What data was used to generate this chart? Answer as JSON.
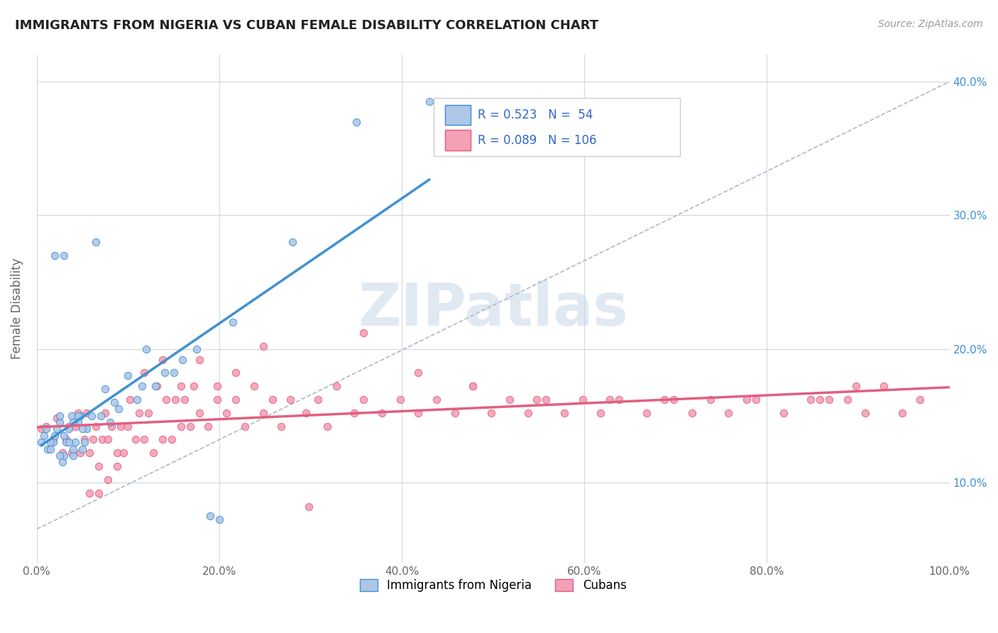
{
  "title": "IMMIGRANTS FROM NIGERIA VS CUBAN FEMALE DISABILITY CORRELATION CHART",
  "source": "Source: ZipAtlas.com",
  "xlabel": "",
  "ylabel": "Female Disability",
  "legend_label1": "Immigrants from Nigeria",
  "legend_label2": "Cubans",
  "r1": 0.523,
  "n1": 54,
  "r2": 0.089,
  "n2": 106,
  "color1": "#aec6e8",
  "color2": "#f4a0b5",
  "line_color1": "#4090d0",
  "line_color2": "#e06080",
  "watermark": "ZIPatlas",
  "watermark_color": "#c8d8e8",
  "background_color": "#ffffff",
  "grid_color": "#d0d8e0",
  "xlim": [
    0.0,
    1.0
  ],
  "ylim": [
    0.04,
    0.42
  ],
  "xticks": [
    0.0,
    0.2,
    0.4,
    0.6,
    0.8,
    1.0
  ],
  "xtick_labels": [
    "0.0%",
    "20.0%",
    "40.0%",
    "60.0%",
    "80.0%",
    "100.0%"
  ],
  "yticks": [
    0.1,
    0.2,
    0.3,
    0.4
  ],
  "ytick_labels": [
    "10.0%",
    "20.0%",
    "30.0%",
    "40.0%"
  ],
  "nigeria_x": [
    0.005,
    0.008,
    0.01,
    0.012,
    0.015,
    0.018,
    0.02,
    0.022,
    0.025,
    0.025,
    0.028,
    0.03,
    0.03,
    0.032,
    0.035,
    0.038,
    0.04,
    0.04,
    0.042,
    0.045,
    0.048,
    0.05,
    0.052,
    0.055,
    0.02,
    0.025,
    0.015,
    0.03,
    0.035,
    0.04,
    0.045,
    0.05,
    0.06,
    0.065,
    0.07,
    0.075,
    0.08,
    0.085,
    0.09,
    0.1,
    0.11,
    0.115,
    0.12,
    0.13,
    0.14,
    0.15,
    0.16,
    0.175,
    0.19,
    0.2,
    0.215,
    0.28,
    0.35,
    0.43
  ],
  "nigeria_y": [
    0.13,
    0.135,
    0.14,
    0.125,
    0.125,
    0.13,
    0.135,
    0.14,
    0.145,
    0.15,
    0.115,
    0.12,
    0.135,
    0.13,
    0.14,
    0.15,
    0.12,
    0.125,
    0.13,
    0.145,
    0.15,
    0.125,
    0.13,
    0.14,
    0.27,
    0.12,
    0.13,
    0.27,
    0.13,
    0.145,
    0.15,
    0.14,
    0.15,
    0.28,
    0.15,
    0.17,
    0.145,
    0.16,
    0.155,
    0.18,
    0.162,
    0.172,
    0.2,
    0.172,
    0.182,
    0.182,
    0.192,
    0.2,
    0.075,
    0.072,
    0.22,
    0.28,
    0.37,
    0.385
  ],
  "cuba_x": [
    0.005,
    0.01,
    0.018,
    0.022,
    0.028,
    0.032,
    0.035,
    0.038,
    0.042,
    0.045,
    0.048,
    0.052,
    0.055,
    0.058,
    0.062,
    0.065,
    0.068,
    0.072,
    0.075,
    0.078,
    0.082,
    0.088,
    0.092,
    0.095,
    0.1,
    0.102,
    0.108,
    0.112,
    0.118,
    0.122,
    0.128,
    0.132,
    0.138,
    0.142,
    0.148,
    0.152,
    0.158,
    0.162,
    0.168,
    0.172,
    0.178,
    0.188,
    0.198,
    0.208,
    0.218,
    0.228,
    0.238,
    0.248,
    0.258,
    0.268,
    0.278,
    0.295,
    0.308,
    0.318,
    0.328,
    0.348,
    0.358,
    0.378,
    0.398,
    0.418,
    0.438,
    0.458,
    0.478,
    0.498,
    0.518,
    0.538,
    0.558,
    0.578,
    0.598,
    0.618,
    0.638,
    0.668,
    0.688,
    0.718,
    0.738,
    0.758,
    0.788,
    0.818,
    0.848,
    0.868,
    0.888,
    0.908,
    0.928,
    0.948,
    0.968,
    0.118,
    0.138,
    0.078,
    0.068,
    0.088,
    0.058,
    0.198,
    0.178,
    0.158,
    0.218,
    0.358,
    0.418,
    0.478,
    0.548,
    0.628,
    0.698,
    0.778,
    0.858,
    0.898,
    0.248,
    0.298
  ],
  "cuba_y": [
    0.14,
    0.142,
    0.132,
    0.148,
    0.122,
    0.132,
    0.142,
    0.122,
    0.142,
    0.152,
    0.122,
    0.132,
    0.152,
    0.122,
    0.132,
    0.142,
    0.112,
    0.132,
    0.152,
    0.132,
    0.142,
    0.122,
    0.142,
    0.122,
    0.142,
    0.162,
    0.132,
    0.152,
    0.132,
    0.152,
    0.122,
    0.172,
    0.132,
    0.162,
    0.132,
    0.162,
    0.142,
    0.162,
    0.142,
    0.172,
    0.152,
    0.142,
    0.162,
    0.152,
    0.162,
    0.142,
    0.172,
    0.152,
    0.162,
    0.142,
    0.162,
    0.152,
    0.162,
    0.142,
    0.172,
    0.152,
    0.162,
    0.152,
    0.162,
    0.152,
    0.162,
    0.152,
    0.172,
    0.152,
    0.162,
    0.152,
    0.162,
    0.152,
    0.162,
    0.152,
    0.162,
    0.152,
    0.162,
    0.152,
    0.162,
    0.152,
    0.162,
    0.152,
    0.162,
    0.162,
    0.162,
    0.152,
    0.172,
    0.152,
    0.162,
    0.182,
    0.192,
    0.102,
    0.092,
    0.112,
    0.092,
    0.172,
    0.192,
    0.172,
    0.182,
    0.212,
    0.182,
    0.172,
    0.162,
    0.162,
    0.162,
    0.162,
    0.162,
    0.172,
    0.202,
    0.082
  ]
}
